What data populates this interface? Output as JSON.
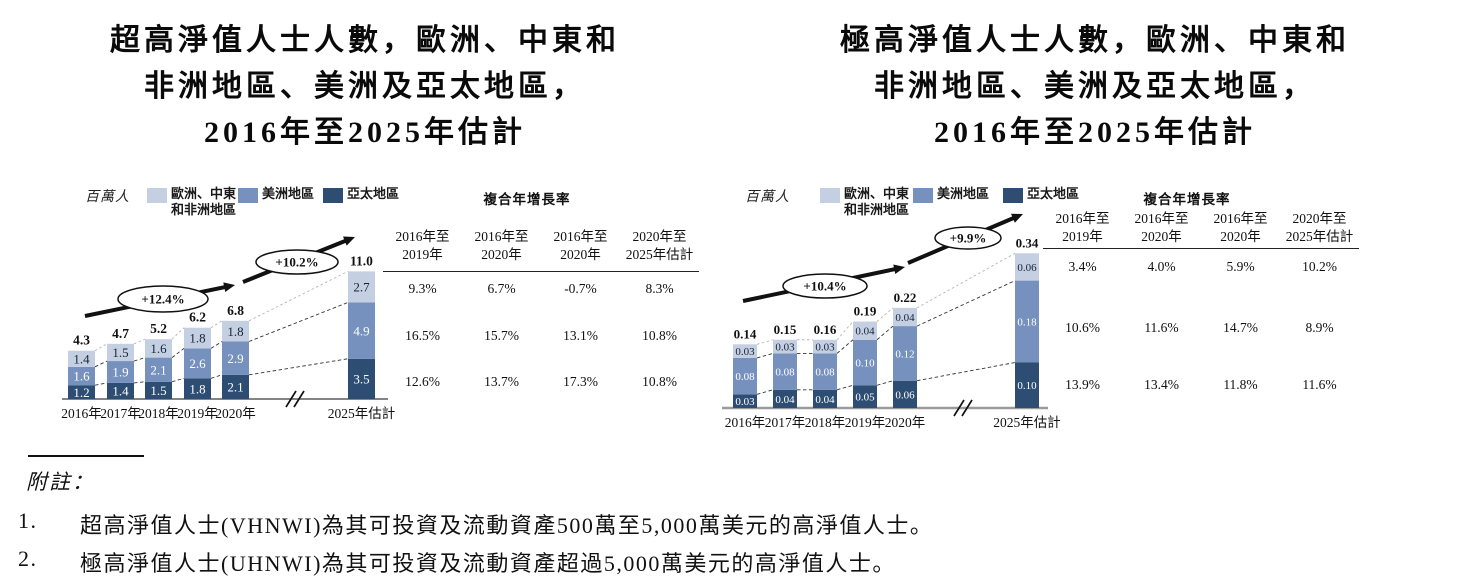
{
  "chart_data": [
    {
      "type": "stacked-bar",
      "title_lines": [
        "超高淨值人士人數，歐洲、中東和",
        "非洲地區、美洲及亞太地區，",
        "2016年至2025年估計"
      ],
      "unit_label": "百萬人",
      "legend": [
        {
          "label_line1": "歐洲、中東",
          "label_line2": "和非洲地區",
          "color": "#c5cfe2"
        },
        {
          "label_line1": "美洲地區",
          "label_line2": "",
          "color": "#7691bd"
        },
        {
          "label_line1": "亞太地區",
          "label_line2": "",
          "color": "#2d4d73"
        }
      ],
      "categories": [
        "2016年",
        "2017年",
        "2018年",
        "2019年",
        "2020年",
        "2025年估計"
      ],
      "series": [
        {
          "name": "亞太地區",
          "color": "#2d4d73",
          "label_color": "#ffffff",
          "values": [
            "1.2",
            "1.4",
            "1.5",
            "1.8",
            "2.1",
            "3.5"
          ]
        },
        {
          "name": "美洲地區",
          "color": "#7691bd",
          "label_color": "#ffffff",
          "values": [
            "1.6",
            "1.9",
            "2.1",
            "2.6",
            "2.9",
            "4.9"
          ]
        },
        {
          "name": "歐洲、中東和非洲地區",
          "color": "#c5cfe2",
          "label_color": "#16233a",
          "values": [
            "1.4",
            "1.5",
            "1.6",
            "1.8",
            "1.8",
            "2.7"
          ]
        }
      ],
      "totals": [
        "4.3",
        "4.7",
        "5.2",
        "6.2",
        "6.8",
        "11.0"
      ],
      "growth_annotations": [
        "+12.4%",
        "+10.2%"
      ],
      "axis_break": true,
      "cagr_table": {
        "title": "複合年增長率",
        "columns": [
          {
            "line1": "2016年至",
            "line2": "2019年"
          },
          {
            "line1": "2016年至",
            "line2": "2020年"
          },
          {
            "line1": "2016年至",
            "line2": "2020年"
          },
          {
            "line1": "2020年至",
            "line2": "2025年估計"
          }
        ],
        "rows": [
          [
            "9.3%",
            "6.7%",
            "-0.7%",
            "8.3%"
          ],
          [
            "16.5%",
            "15.7%",
            "13.1%",
            "10.8%"
          ],
          [
            "12.6%",
            "13.7%",
            "17.3%",
            "10.8%"
          ]
        ]
      }
    },
    {
      "type": "stacked-bar",
      "title_lines": [
        "極高淨值人士人數，歐洲、中東和",
        "非洲地區、美洲及亞太地區，",
        "2016年至2025年估計"
      ],
      "unit_label": "百萬人",
      "legend": [
        {
          "label_line1": "歐洲、中東",
          "label_line2": "和非洲地區",
          "color": "#c5cfe2"
        },
        {
          "label_line1": "美洲地區",
          "label_line2": "",
          "color": "#7691bd"
        },
        {
          "label_line1": "亞太地區",
          "label_line2": "",
          "color": "#2d4d73"
        }
      ],
      "categories": [
        "2016年",
        "2017年",
        "2018年",
        "2019年",
        "2020年",
        "2025年估計"
      ],
      "series": [
        {
          "name": "亞太地區",
          "color": "#2d4d73",
          "label_color": "#ffffff",
          "values": [
            "0.03",
            "0.04",
            "0.04",
            "0.05",
            "0.06",
            "0.10"
          ]
        },
        {
          "name": "美洲地區",
          "color": "#7691bd",
          "label_color": "#ffffff",
          "values": [
            "0.08",
            "0.08",
            "0.08",
            "0.10",
            "0.12",
            "0.18"
          ]
        },
        {
          "name": "歐洲、中東和非洲地區",
          "color": "#c5cfe2",
          "label_color": "#16233a",
          "values": [
            "0.03",
            "0.03",
            "0.03",
            "0.04",
            "0.04",
            "0.06"
          ]
        }
      ],
      "totals": [
        "0.14",
        "0.15",
        "0.16",
        "0.19",
        "0.22",
        "0.34"
      ],
      "growth_annotations": [
        "+10.4%",
        "+9.9%"
      ],
      "axis_break": true,
      "cagr_table": {
        "title": "複合年增長率",
        "columns": [
          {
            "line1": "2016年至",
            "line2": "2019年"
          },
          {
            "line1": "2016年至",
            "line2": "2020年"
          },
          {
            "line1": "2016年至",
            "line2": "2020年"
          },
          {
            "line1": "2020年至",
            "line2": "2025年估計"
          }
        ],
        "rows": [
          [
            "3.4%",
            "4.0%",
            "5.9%",
            "10.2%"
          ],
          [
            "10.6%",
            "11.6%",
            "14.7%",
            "8.9%"
          ],
          [
            "13.9%",
            "13.4%",
            "11.8%",
            "11.6%"
          ]
        ]
      }
    }
  ],
  "footnotes": {
    "label": "附註：",
    "items": [
      {
        "num": "1.",
        "text": "超高淨值人士(VHNWI)為其可投資及流動資產500萬至5,000萬美元的高淨值人士。"
      },
      {
        "num": "2.",
        "text": "極高淨值人士(UHNWI)為其可投資及流動資產超過5,000萬美元的高淨值人士。"
      }
    ]
  }
}
